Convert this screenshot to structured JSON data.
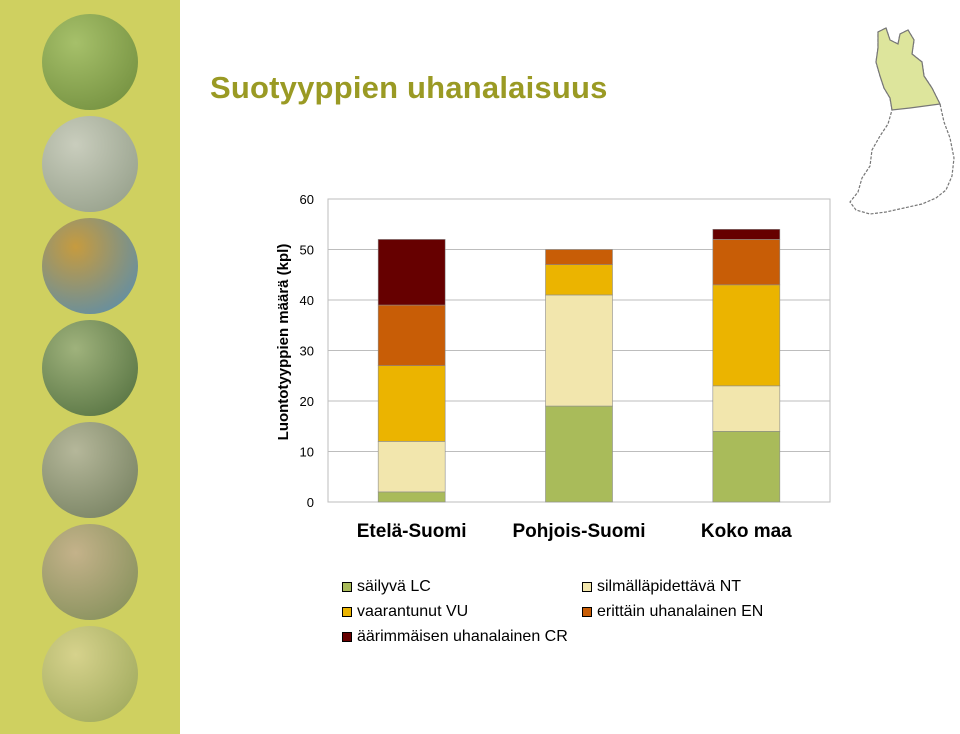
{
  "slide": {
    "title": "Suotyyppien uhanalaisuus",
    "accent_color": "#cfd060",
    "title_color": "#9a9a24"
  },
  "sidebar": {
    "photos": [
      {
        "icon": "grass-photo-icon",
        "colors": [
          "#6d8a3a",
          "#a6c06a"
        ]
      },
      {
        "icon": "rocky-shore-photo-icon",
        "colors": [
          "#8f9a84",
          "#c9cdbd"
        ]
      },
      {
        "icon": "peatland-pools-photo-icon",
        "colors": [
          "#4f8cb7",
          "#c69b3f"
        ]
      },
      {
        "icon": "pine-forest-photo-icon",
        "colors": [
          "#4d6b3a",
          "#9fb27c"
        ]
      },
      {
        "icon": "boulder-forest-photo-icon",
        "colors": [
          "#6f7b5a",
          "#b5b79a"
        ]
      },
      {
        "icon": "meadow-cabin-photo-icon",
        "colors": [
          "#7d8c55",
          "#c4b28a"
        ]
      },
      {
        "icon": "fen-landscape-photo-icon",
        "colors": [
          "#98a457",
          "#d6d28c"
        ]
      }
    ]
  },
  "map": {
    "icon": "finland-map-icon",
    "highlight_color": "#dde59c"
  },
  "chart_data": {
    "type": "bar",
    "stacked": true,
    "categories": [
      "Etelä-Suomi",
      "Pohjois-Suomi",
      "Koko maa"
    ],
    "ylabel": "Luontotyyppien määrä (kpl)",
    "xlabel": "",
    "ylim": [
      0,
      60
    ],
    "yticks": [
      0,
      10,
      20,
      30,
      40,
      50,
      60
    ],
    "grid": true,
    "legend_position": "bottom",
    "series": [
      {
        "name": "säilyvä LC",
        "color": "#a9bb5a",
        "values": [
          2,
          19,
          14
        ]
      },
      {
        "name": "silmälläpidettävä NT",
        "color": "#f2e6ad",
        "values": [
          10,
          22,
          9
        ]
      },
      {
        "name": "vaarantunut VU",
        "color": "#ebb400",
        "values": [
          15,
          6,
          20
        ]
      },
      {
        "name": "erittäin uhanalainen EN",
        "color": "#c85d06",
        "values": [
          12,
          3,
          9
        ]
      },
      {
        "name": "äärimmäisen uhanalainen CR",
        "color": "#660000",
        "values": [
          13,
          0,
          2
        ]
      }
    ]
  }
}
